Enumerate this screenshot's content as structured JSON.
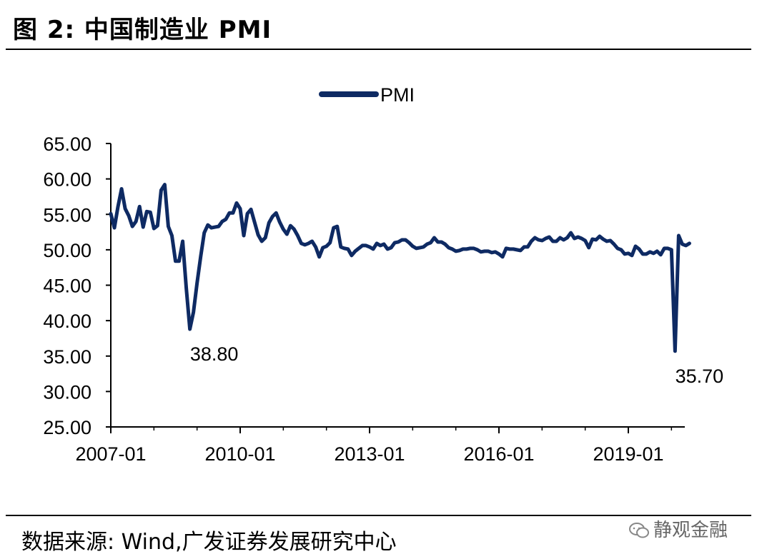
{
  "figure": {
    "title": "图 2:  中国制造业 PMI",
    "source": "数据来源:  Wind,广发证券发展研究中心",
    "brand": "静观金融"
  },
  "colors": {
    "series": "#0e2a63",
    "axis": "#000000"
  },
  "chart_data": {
    "type": "line",
    "title": "",
    "xlabel": "",
    "ylabel": "",
    "ylim": [
      25,
      65
    ],
    "yticks": [
      "65.00",
      "60.00",
      "55.00",
      "50.00",
      "45.00",
      "40.00",
      "35.00",
      "30.00",
      "25.00"
    ],
    "xticks": [
      "2007-01",
      "2010-01",
      "2013-01",
      "2016-01",
      "2019-01"
    ],
    "grid": false,
    "legend": {
      "position": "top-center"
    },
    "series": [
      {
        "name": "PMI",
        "x": [
          "2007-01",
          "2007-02",
          "2007-03",
          "2007-04",
          "2007-05",
          "2007-06",
          "2007-07",
          "2007-08",
          "2007-09",
          "2007-10",
          "2007-11",
          "2007-12",
          "2008-01",
          "2008-02",
          "2008-03",
          "2008-04",
          "2008-05",
          "2008-06",
          "2008-07",
          "2008-08",
          "2008-09",
          "2008-10",
          "2008-11",
          "2008-12",
          "2009-01",
          "2009-02",
          "2009-03",
          "2009-04",
          "2009-05",
          "2009-06",
          "2009-07",
          "2009-08",
          "2009-09",
          "2009-10",
          "2009-11",
          "2009-12",
          "2010-01",
          "2010-02",
          "2010-03",
          "2010-04",
          "2010-05",
          "2010-06",
          "2010-07",
          "2010-08",
          "2010-09",
          "2010-10",
          "2010-11",
          "2010-12",
          "2011-01",
          "2011-02",
          "2011-03",
          "2011-04",
          "2011-05",
          "2011-06",
          "2011-07",
          "2011-08",
          "2011-09",
          "2011-10",
          "2011-11",
          "2011-12",
          "2012-01",
          "2012-02",
          "2012-03",
          "2012-04",
          "2012-05",
          "2012-06",
          "2012-07",
          "2012-08",
          "2012-09",
          "2012-10",
          "2012-11",
          "2012-12",
          "2013-01",
          "2013-02",
          "2013-03",
          "2013-04",
          "2013-05",
          "2013-06",
          "2013-07",
          "2013-08",
          "2013-09",
          "2013-10",
          "2013-11",
          "2013-12",
          "2014-01",
          "2014-02",
          "2014-03",
          "2014-04",
          "2014-05",
          "2014-06",
          "2014-07",
          "2014-08",
          "2014-09",
          "2014-10",
          "2014-11",
          "2014-12",
          "2015-01",
          "2015-02",
          "2015-03",
          "2015-04",
          "2015-05",
          "2015-06",
          "2015-07",
          "2015-08",
          "2015-09",
          "2015-10",
          "2015-11",
          "2015-12",
          "2016-01",
          "2016-02",
          "2016-03",
          "2016-04",
          "2016-05",
          "2016-06",
          "2016-07",
          "2016-08",
          "2016-09",
          "2016-10",
          "2016-11",
          "2016-12",
          "2017-01",
          "2017-02",
          "2017-03",
          "2017-04",
          "2017-05",
          "2017-06",
          "2017-07",
          "2017-08",
          "2017-09",
          "2017-10",
          "2017-11",
          "2017-12",
          "2018-01",
          "2018-02",
          "2018-03",
          "2018-04",
          "2018-05",
          "2018-06",
          "2018-07",
          "2018-08",
          "2018-09",
          "2018-10",
          "2018-11",
          "2018-12",
          "2019-01",
          "2019-02",
          "2019-03",
          "2019-04",
          "2019-05",
          "2019-06",
          "2019-07",
          "2019-08",
          "2019-09",
          "2019-10",
          "2019-11",
          "2019-12",
          "2020-01",
          "2020-02",
          "2020-03",
          "2020-04",
          "2020-05",
          "2020-06"
        ],
        "values": [
          55.1,
          53.1,
          56.1,
          58.6,
          55.8,
          54.8,
          53.3,
          54.0,
          56.1,
          53.2,
          55.4,
          55.3,
          53.0,
          53.4,
          58.4,
          59.2,
          53.3,
          52.0,
          48.4,
          48.4,
          51.2,
          44.6,
          38.8,
          41.2,
          45.3,
          49.0,
          52.4,
          53.5,
          53.1,
          53.2,
          53.3,
          54.0,
          54.3,
          55.2,
          55.2,
          56.6,
          55.8,
          52.0,
          55.1,
          55.7,
          53.9,
          52.1,
          51.2,
          51.7,
          53.8,
          54.7,
          55.2,
          53.9,
          52.9,
          52.2,
          53.4,
          52.9,
          52.0,
          50.9,
          50.7,
          50.9,
          51.2,
          50.4,
          49.0,
          50.3,
          50.5,
          51.0,
          53.1,
          53.3,
          50.4,
          50.2,
          50.1,
          49.2,
          49.8,
          50.2,
          50.6,
          50.6,
          50.4,
          50.1,
          50.9,
          50.6,
          50.8,
          50.1,
          50.3,
          51.0,
          51.1,
          51.4,
          51.4,
          51.0,
          50.5,
          50.2,
          50.3,
          50.4,
          50.8,
          51.0,
          51.7,
          51.1,
          51.1,
          50.8,
          50.3,
          50.1,
          49.8,
          49.9,
          50.1,
          50.1,
          50.2,
          50.2,
          50.0,
          49.7,
          49.8,
          49.8,
          49.6,
          49.7,
          49.4,
          49.0,
          50.2,
          50.1,
          50.1,
          50.0,
          49.9,
          50.4,
          50.4,
          51.2,
          51.7,
          51.4,
          51.3,
          51.6,
          51.8,
          51.2,
          51.2,
          51.7,
          51.4,
          51.7,
          52.4,
          51.6,
          51.8,
          51.6,
          51.3,
          50.3,
          51.5,
          51.4,
          51.9,
          51.5,
          51.2,
          51.3,
          50.8,
          50.2,
          50.0,
          49.4,
          49.5,
          49.2,
          50.5,
          50.1,
          49.4,
          49.4,
          49.7,
          49.5,
          49.8,
          49.3,
          50.2,
          50.2,
          50.0,
          35.7,
          52.0,
          50.8,
          50.6,
          50.9
        ]
      }
    ],
    "annotations": [
      {
        "x": "2008-11",
        "y": 38.8,
        "label": "38.80"
      },
      {
        "x": "2020-02",
        "y": 35.7,
        "label": "35.70"
      }
    ]
  }
}
